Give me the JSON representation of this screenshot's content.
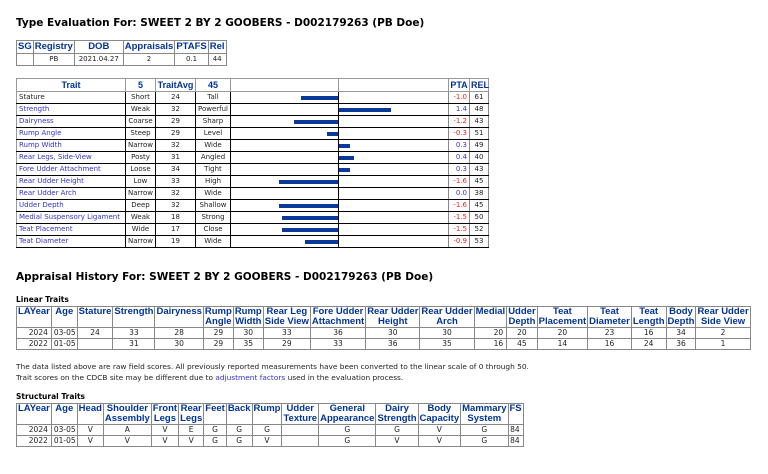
{
  "type_eval": {
    "title": "Type Evaluation For: SWEET 2 BY 2 GOOBERS - D002179263 (PB Doe)",
    "info": {
      "headers": [
        "SG",
        "Registry",
        "DOB",
        "Appraisals",
        "PTAFS",
        "Rel"
      ],
      "values": [
        "",
        "PB",
        "2021.04.27",
        "2",
        "0.1",
        "44"
      ]
    },
    "trait_headers": [
      "Trait",
      "5",
      "TraitAvg",
      "45",
      "",
      "",
      "PTA",
      "REL"
    ],
    "traits": [
      {
        "name": "Stature",
        "low": "Short",
        "avg": "24",
        "high": "Tall",
        "pta": "-1.0",
        "rel": "61",
        "link": false
      },
      {
        "name": "Strength",
        "low": "Weak",
        "avg": "32",
        "high": "Powerful",
        "pta": "1.4",
        "rel": "48",
        "link": true
      },
      {
        "name": "Dairyness",
        "low": "Coarse",
        "avg": "29",
        "high": "Sharp",
        "pta": "-1.2",
        "rel": "43",
        "link": true
      },
      {
        "name": "Rump Angle",
        "low": "Steep",
        "avg": "29",
        "high": "Level",
        "pta": "-0.3",
        "rel": "51",
        "link": true
      },
      {
        "name": "Rump Width",
        "low": "Narrow",
        "avg": "32",
        "high": "Wide",
        "pta": "0.3",
        "rel": "49",
        "link": true
      },
      {
        "name": "Rear Legs, Side-View",
        "low": "Posty",
        "avg": "31",
        "high": "Angled",
        "pta": "0.4",
        "rel": "40",
        "link": true
      },
      {
        "name": "Fore Udder Attachment",
        "low": "Loose",
        "avg": "34",
        "high": "Tight",
        "pta": "0.3",
        "rel": "43",
        "link": true
      },
      {
        "name": "Rear Udder Height",
        "low": "Low",
        "avg": "33",
        "high": "High",
        "pta": "-1.6",
        "rel": "45",
        "link": true
      },
      {
        "name": "Rear Udder Arch",
        "low": "Narrow",
        "avg": "32",
        "high": "Wide",
        "pta": "0.0",
        "rel": "38",
        "link": true
      },
      {
        "name": "Udder Depth",
        "low": "Deep",
        "avg": "32",
        "high": "Shallow",
        "pta": "-1.6",
        "rel": "45",
        "link": true
      },
      {
        "name": "Medial Suspensory Ligament",
        "low": "Weak",
        "avg": "18",
        "high": "Strong",
        "pta": "-1.5",
        "rel": "50",
        "link": true
      },
      {
        "name": "Teat Placement",
        "low": "Wide",
        "avg": "17",
        "high": "Close",
        "pta": "-1.5",
        "rel": "52",
        "link": true
      },
      {
        "name": "Teat Diameter",
        "low": "Narrow",
        "avg": "19",
        "high": "Wide",
        "pta": "-0.9",
        "rel": "53",
        "link": true
      }
    ],
    "colors": {
      "bar": "#0a3a99",
      "negative": "#ee2222",
      "positive": "#3333cc",
      "header": "#003399"
    }
  },
  "history": {
    "title": "Appraisal History For: SWEET 2 BY 2 GOOBERS - D002179263 (PB Doe)",
    "linear": {
      "label": "Linear Traits",
      "headers": [
        "LAYear",
        "Age",
        "Stature",
        "Strength",
        "Dairyness",
        "Rump Angle",
        "Rump Width",
        "Rear Leg Side View",
        "Fore Udder Attachment",
        "Rear Udder Height",
        "Rear Udder Arch",
        "Medial",
        "Udder Depth",
        "Teat Placement",
        "Teat Diameter",
        "Teat Length",
        "Body Depth",
        "Rear Udder Side View"
      ],
      "rows": [
        [
          "2024",
          "03-05",
          "24",
          "33",
          "28",
          "29",
          "30",
          "33",
          "36",
          "30",
          "30",
          "20",
          "20",
          "20",
          "23",
          "16",
          "34",
          "2"
        ],
        [
          "2022",
          "01-05",
          "",
          "31",
          "30",
          "29",
          "35",
          "29",
          "33",
          "36",
          "35",
          "16",
          "45",
          "14",
          "16",
          "24",
          "36",
          "1"
        ]
      ]
    },
    "note": {
      "text_before": "The data listed above are raw field scores. All previously reported measurements have been converted to the linear scale of 0 through 50. Trait scores on the CDCB site may be different due to ",
      "link": "adjustment factors",
      "text_after": " used in the evaluation process."
    },
    "structural": {
      "label": "Structural Traits",
      "headers": [
        "LAYear",
        "Age",
        "Head",
        "Shoulder Assembly",
        "Front Legs",
        "Rear Legs",
        "Feet",
        "Back",
        "Rump",
        "Udder Texture",
        "General Appearance",
        "Dairy Strength",
        "Body Capacity",
        "Mammary System",
        "FS"
      ],
      "rows": [
        [
          "2024",
          "03-05",
          "V",
          "A",
          "V",
          "E",
          "G",
          "G",
          "G",
          "",
          "G",
          "G",
          "V",
          "G",
          "84"
        ],
        [
          "2022",
          "01-05",
          "V",
          "V",
          "V",
          "V",
          "G",
          "G",
          "V",
          "",
          "G",
          "V",
          "V",
          "G",
          "84"
        ]
      ]
    }
  }
}
